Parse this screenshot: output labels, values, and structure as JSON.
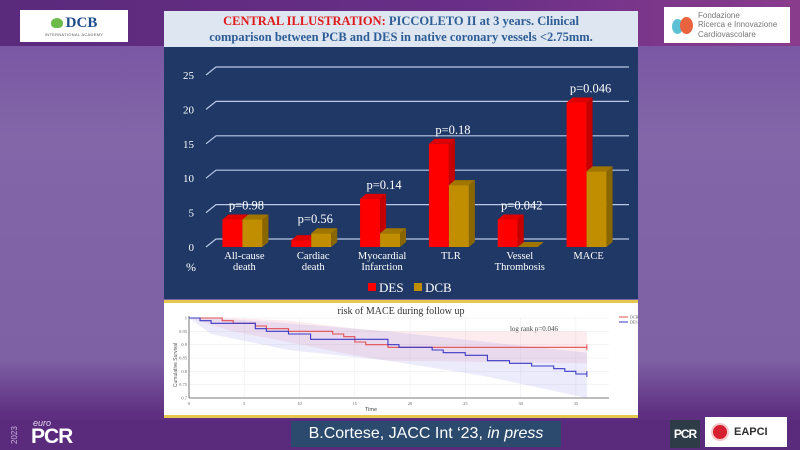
{
  "header": {
    "left_logo": {
      "title": "DCB",
      "subtitle": "INTERNATIONAL ACADEMY"
    },
    "title_red": "CENTRAL ILLUSTRATION:",
    "title_line1": " PICCOLETO II at 3 years. Clinical",
    "title_line2": "comparison between PCB and DES in native coronary vessels <2.75mm.",
    "right_logo": {
      "line1": "Fondazione",
      "line2": "Ricerca e Innovazione",
      "line3": "Cardiovascolare"
    }
  },
  "colors": {
    "des": "#ff0000",
    "dcb": "#c08e00",
    "km_dcb": "#e05050",
    "km_des": "#3a3ac8",
    "accent_gold": "#e5c84e"
  },
  "chart_data": [
    {
      "type": "bar",
      "title": "",
      "ylabel": "%",
      "ylim": [
        0,
        25
      ],
      "yticks": [
        0,
        5,
        10,
        15,
        20,
        25
      ],
      "grid": true,
      "legend": "bottom",
      "categories": [
        {
          "line1": "All-cause",
          "line2": "death"
        },
        {
          "line1": "Cardiac",
          "line2": "death"
        },
        {
          "line1": "Myocardial",
          "line2": "Infarction"
        },
        {
          "line1": "TLR",
          "line2": ""
        },
        {
          "line1": "Vessel",
          "line2": "Thrombosis"
        },
        {
          "line1": "MACE",
          "line2": ""
        }
      ],
      "series": [
        {
          "name": "DES",
          "values": [
            4,
            1,
            7,
            15,
            4,
            21
          ]
        },
        {
          "name": "DCB",
          "values": [
            4,
            2,
            2,
            9,
            0,
            11
          ]
        }
      ],
      "annotations": [
        "p=0.98",
        "p=0.56",
        "p=0.14",
        "p=0.18",
        "p=0.042",
        "p=0.046"
      ]
    },
    {
      "type": "line",
      "title": "risk of MACE during follow up",
      "xlabel": "Time",
      "ylabel": "Cumulative Survival",
      "xlim": [
        0,
        38
      ],
      "ylim": [
        0.7,
        1.0
      ],
      "xticks": [
        0,
        5,
        10,
        15,
        20,
        25,
        30,
        35
      ],
      "yticks": [
        0.7,
        0.75,
        0.8,
        0.85,
        0.9,
        0.95,
        1
      ],
      "ytick_labels": [
        "0.7",
        "0.75",
        "0.8",
        "0.85",
        "0.9",
        "0.95",
        "1"
      ],
      "annotation": "log rank p=0.046",
      "legend": "top-right",
      "series": [
        {
          "name": "DCB",
          "steps": [
            [
              0,
              1.0
            ],
            [
              3,
              0.99
            ],
            [
              4,
              0.98
            ],
            [
              6,
              0.97
            ],
            [
              7,
              0.96
            ],
            [
              9,
              0.95
            ],
            [
              13,
              0.94
            ],
            [
              14,
              0.93
            ],
            [
              15,
              0.91
            ],
            [
              16,
              0.9
            ],
            [
              18,
              0.89
            ],
            [
              36,
              0.89
            ]
          ],
          "ci": [
            [
              0,
              1.0,
              1.0
            ],
            [
              4,
              0.95,
              1.0
            ],
            [
              9,
              0.91,
              0.99
            ],
            [
              15,
              0.86,
              0.96
            ],
            [
              18,
              0.84,
              0.95
            ],
            [
              36,
              0.83,
              0.95
            ]
          ]
        },
        {
          "name": "DES",
          "steps": [
            [
              0,
              1.0
            ],
            [
              1,
              0.99
            ],
            [
              2,
              0.98
            ],
            [
              6,
              0.96
            ],
            [
              7,
              0.95
            ],
            [
              9,
              0.94
            ],
            [
              11,
              0.92
            ],
            [
              18,
              0.9
            ],
            [
              19,
              0.89
            ],
            [
              22,
              0.88
            ],
            [
              23,
              0.87
            ],
            [
              25,
              0.86
            ],
            [
              27,
              0.84
            ],
            [
              29,
              0.83
            ],
            [
              31,
              0.82
            ],
            [
              33,
              0.81
            ],
            [
              34,
              0.8
            ],
            [
              35,
              0.79
            ],
            [
              36,
              0.79
            ]
          ],
          "ci": [
            [
              0,
              1.0,
              1.0
            ],
            [
              2,
              0.94,
              1.0
            ],
            [
              9,
              0.88,
              0.98
            ],
            [
              18,
              0.84,
              0.95
            ],
            [
              27,
              0.78,
              0.91
            ],
            [
              36,
              0.7,
              0.87
            ]
          ]
        }
      ]
    }
  ],
  "footer": {
    "event_year": "2023",
    "event_prefix": "euro",
    "event_name": "PCR",
    "citation_main": "B.Cortese, JACC Int ‘23, ",
    "citation_italic": "in press",
    "pcr_logo": "PCR",
    "eapci_logo": "EAPCI"
  }
}
